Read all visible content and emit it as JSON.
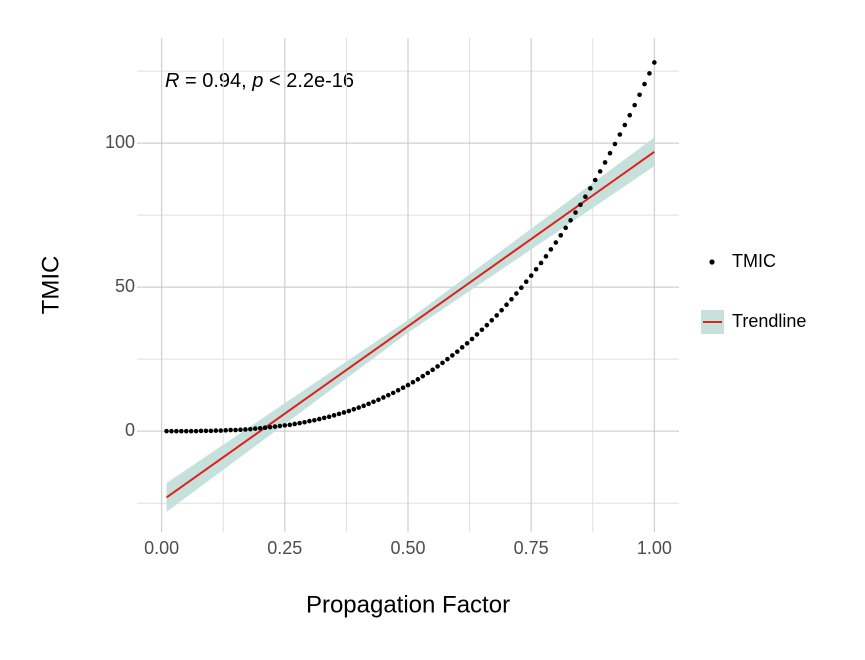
{
  "chart_data": {
    "type": "scatter",
    "x_label": "Propagation Factor",
    "y_label": "TMIC",
    "annotation": {
      "r_symbol": "R",
      "r_text": " = 0.94, ",
      "p_symbol": "p",
      "p_text": " < 2.2e-16"
    },
    "xlim": [
      -0.05,
      1.05
    ],
    "ylim": [
      -35,
      136.5
    ],
    "xticks": [
      {
        "value": 0,
        "label": "0.00"
      },
      0.25,
      {
        "value": 0.5,
        "label": "0.50"
      },
      0.75,
      {
        "value": 1,
        "label": "1.00"
      }
    ],
    "yticks": [
      0,
      50,
      100
    ],
    "x_minor_ticks": [
      0.125,
      0.375,
      0.625,
      0.875
    ],
    "y_minor_ticks": [
      -25,
      25,
      75,
      125
    ],
    "grid": true,
    "legend_position": "right",
    "series": [
      {
        "name": "TMIC",
        "kind": "points",
        "color": "#000000",
        "x": [
          0.01,
          0.02,
          0.03,
          0.04,
          0.05,
          0.06,
          0.07,
          0.08,
          0.09,
          0.1,
          0.11,
          0.12,
          0.13,
          0.14,
          0.15,
          0.16,
          0.17,
          0.18,
          0.19,
          0.2,
          0.21,
          0.22,
          0.23,
          0.24,
          0.25,
          0.26,
          0.27,
          0.28,
          0.29,
          0.3,
          0.31,
          0.32,
          0.33,
          0.34,
          0.35,
          0.36,
          0.37,
          0.38,
          0.39,
          0.4,
          0.41,
          0.42,
          0.43,
          0.44,
          0.45,
          0.46,
          0.47,
          0.48,
          0.49,
          0.5,
          0.51,
          0.52,
          0.53,
          0.54,
          0.55,
          0.56,
          0.57,
          0.58,
          0.59,
          0.6,
          0.61,
          0.62,
          0.63,
          0.64,
          0.65,
          0.66,
          0.67,
          0.68,
          0.69,
          0.7,
          0.71,
          0.72,
          0.73,
          0.74,
          0.75,
          0.76,
          0.77,
          0.78,
          0.79,
          0.8,
          0.81,
          0.82,
          0.83,
          0.84,
          0.85,
          0.86,
          0.87,
          0.88,
          0.89,
          0.9,
          0.91,
          0.92,
          0.93,
          0.94,
          0.95,
          0.96,
          0.97,
          0.98,
          0.99,
          1.0
        ],
        "values": [
          0,
          0,
          0,
          0,
          0,
          0,
          0,
          0.1,
          0.1,
          0.1,
          0.2,
          0.2,
          0.3,
          0.4,
          0.4,
          0.5,
          0.6,
          0.7,
          0.9,
          1,
          1.2,
          1.4,
          1.6,
          1.8,
          2,
          2.2,
          2.5,
          2.8,
          3.1,
          3.5,
          3.8,
          4.2,
          4.6,
          5,
          5.5,
          6,
          6.5,
          7,
          7.6,
          8.2,
          8.8,
          9.5,
          10.2,
          10.9,
          11.7,
          12.5,
          13.3,
          14.2,
          15.1,
          16,
          17,
          18,
          19.1,
          20.2,
          21.3,
          22.5,
          23.7,
          25,
          26.3,
          27.6,
          29.1,
          30.5,
          32,
          33.6,
          35.2,
          36.8,
          38.5,
          40.2,
          42,
          43.9,
          45.8,
          47.8,
          49.8,
          51.9,
          54,
          56.2,
          58.4,
          60.7,
          63.1,
          65.5,
          68,
          70.6,
          73.2,
          75.9,
          78.6,
          81.4,
          84.3,
          87.2,
          90.2,
          93.3,
          96.5,
          99.7,
          103,
          106.3,
          109.7,
          113.2,
          116.8,
          120.5,
          124.2,
          128
        ]
      },
      {
        "name": "Trendline",
        "kind": "smooth",
        "color": "#e0201b",
        "band_color": "#c6e0dc",
        "x": [
          0.01,
          0.5,
          1.0
        ],
        "values": [
          -23,
          36.4,
          97
        ],
        "lower": [
          -28,
          34.2,
          92
        ],
        "upper": [
          -18,
          38.6,
          102
        ]
      }
    ]
  }
}
